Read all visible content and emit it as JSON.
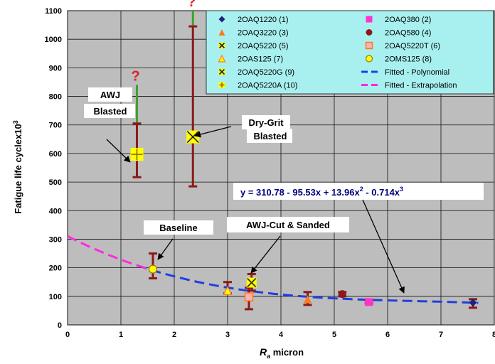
{
  "chart_data": {
    "type": "scatter",
    "xlabel": "R a micron",
    "xlabel_main": "R",
    "xlabel_sub": "a",
    "xlabel_rest": " micron",
    "ylabel": "Fatigue life cyclex10",
    "ylabel_sup": "3",
    "xlim": [
      0,
      8
    ],
    "ylim": [
      0,
      1100
    ],
    "x_ticks": [
      "0",
      "1",
      "2",
      "3",
      "4",
      "5",
      "6",
      "7",
      "8"
    ],
    "y_ticks": [
      "0",
      "100",
      "200",
      "300",
      "400",
      "500",
      "600",
      "700",
      "800",
      "900",
      "1000",
      "1100"
    ],
    "grid": true,
    "plot_background": "#bdbdbd",
    "legend_position": "top-right",
    "legend_background": "#a8f0f0",
    "series": [
      {
        "name": "2OAQ1220 (1)",
        "marker": "diamond",
        "color": "#1a237e",
        "x": 7.6,
        "y": 78,
        "err": [
          60,
          90
        ]
      },
      {
        "name": "2OAQ380 (2)",
        "marker": "square",
        "color": "#ff33cc",
        "x": 5.65,
        "y": 80,
        "err": [
          75,
          85
        ]
      },
      {
        "name": "2OAQ3220 (3)",
        "marker": "triangle",
        "color": "#ff7a1a",
        "x": 4.5,
        "y": 90,
        "err": [
          70,
          115
        ]
      },
      {
        "name": "2OAQ580 (4)",
        "marker": "circle",
        "color": "#8b1a1a",
        "x": 5.15,
        "y": 108,
        "err": [
          100,
          115
        ]
      },
      {
        "name": "2OAQ5220 (5)",
        "marker": "x-box",
        "color": "#ffff00",
        "x": 3.45,
        "y": 148,
        "err": [
          120,
          178
        ]
      },
      {
        "name": "2OAQ5220T (6)",
        "marker": "square-outline",
        "color": "#ffb0b0",
        "x": 3.4,
        "y": 98,
        "err": [
          55,
          130
        ]
      },
      {
        "name": "2OAS125 (7)",
        "marker": "triangle-outline",
        "color": "#ffff00",
        "x": 3.0,
        "y": 120,
        "err": [
          110,
          150
        ]
      },
      {
        "name": "2OMS125 (8)",
        "marker": "circle-outline",
        "color": "#ffff00",
        "x": 1.6,
        "y": 195,
        "err": [
          163,
          250
        ]
      },
      {
        "name": "2OAQ5220G (9)",
        "marker": "x-box",
        "color": "#ffff00",
        "x": 2.35,
        "y": 658,
        "err": [
          485,
          1045
        ]
      },
      {
        "name": "2OAQ5220A (10)",
        "marker": "plus-box",
        "color": "#ffff00",
        "x": 1.3,
        "y": 597,
        "err": [
          517,
          705
        ]
      }
    ],
    "fits": [
      {
        "name": "Fitted - Polynomial",
        "color": "#1f3fdf",
        "x_range": [
          1.3,
          7.7
        ],
        "coeffs": [
          310.78,
          -95.53,
          13.96,
          -0.714
        ]
      },
      {
        "name": "Fitted - Extrapolation",
        "color": "#ff2adf",
        "x_range": [
          0,
          1.6
        ],
        "coeffs": [
          310.78,
          -95.53,
          13.96,
          -0.714
        ]
      }
    ],
    "extrapolated_bars": [
      {
        "x": 1.3,
        "from": 705,
        "to": 840,
        "color": "#3fa02f",
        "label": "?"
      },
      {
        "x": 2.35,
        "from": 1045,
        "to": 1100,
        "color": "#3fa02f",
        "label": "?"
      }
    ],
    "annotations": [
      {
        "id": "awj-blasted",
        "lines": [
          "AWJ",
          "Blasted"
        ]
      },
      {
        "id": "dry-grit",
        "lines": [
          "Dry-Grit",
          "Blasted"
        ]
      },
      {
        "id": "baseline",
        "lines": [
          "Baseline"
        ]
      },
      {
        "id": "awj-cut",
        "lines": [
          "AWJ-Cut & Sanded"
        ]
      },
      {
        "id": "equation",
        "lines": [
          "y = 310.78 - 95.53x + 13.96x",
          "2",
          " - 0.714x",
          "3"
        ]
      }
    ]
  }
}
